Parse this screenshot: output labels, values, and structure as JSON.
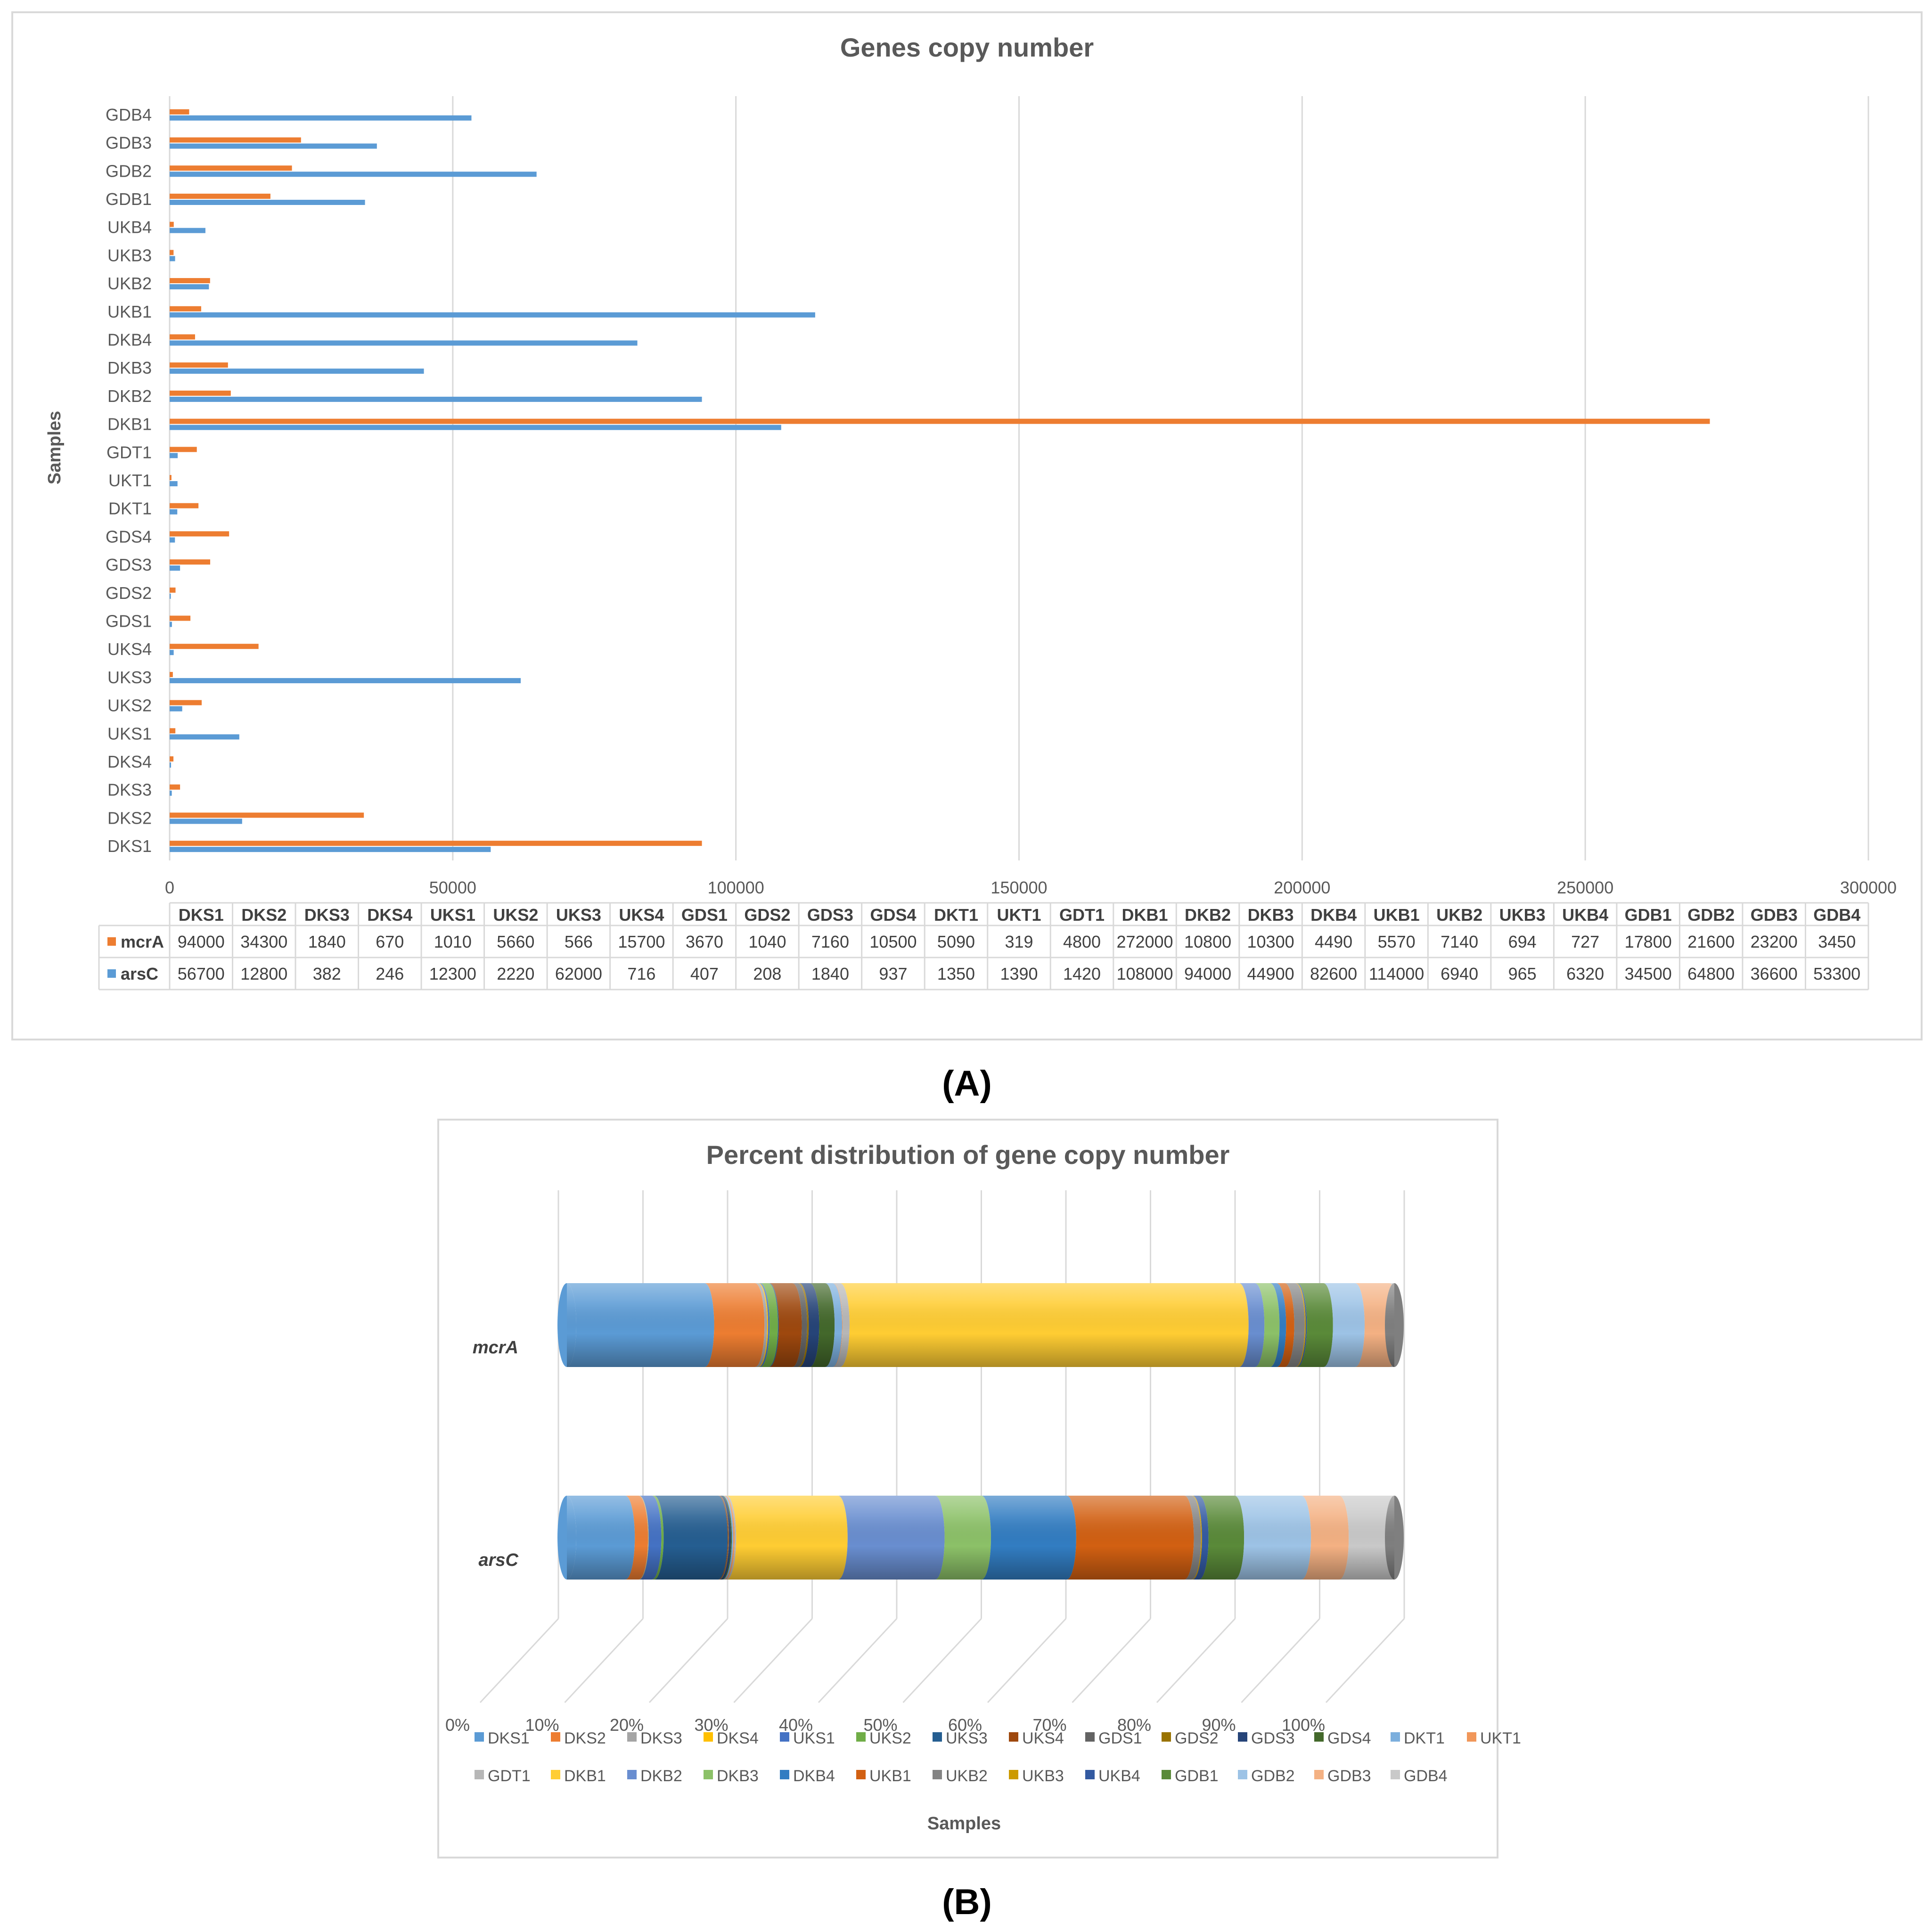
{
  "panels": {
    "a_label": "A",
    "b_label": "B"
  },
  "chart_data": [
    {
      "type": "bar",
      "orientation": "horizontal",
      "title": "Genes copy number",
      "xlabel": "",
      "ylabel": "Samples",
      "xlim": [
        0,
        300000
      ],
      "x_ticks": [
        0,
        50000,
        100000,
        150000,
        200000,
        250000,
        300000
      ],
      "grid": true,
      "legend": "data-table",
      "categories": [
        "DKS1",
        "DKS2",
        "DKS3",
        "DKS4",
        "UKS1",
        "UKS2",
        "UKS3",
        "UKS4",
        "GDS1",
        "GDS2",
        "GDS3",
        "GDS4",
        "DKT1",
        "UKT1",
        "GDT1",
        "DKB1",
        "DKB2",
        "DKB3",
        "DKB4",
        "UKB1",
        "UKB2",
        "UKB3",
        "UKB4",
        "GDB1",
        "GDB2",
        "GDB3",
        "GDB4"
      ],
      "series": [
        {
          "name": "mcrA",
          "color": "#ED7D31",
          "values": [
            94000,
            34300,
            1840,
            670,
            1010,
            5660,
            566,
            15700,
            3670,
            1040,
            7160,
            10500,
            5090,
            319,
            4800,
            272000,
            10800,
            10300,
            4490,
            5570,
            7140,
            694,
            727,
            17800,
            21600,
            23200,
            3450
          ]
        },
        {
          "name": "arsC",
          "color": "#5B9BD5",
          "values": [
            56700,
            12800,
            382,
            246,
            12300,
            2220,
            62000,
            716,
            407,
            208,
            1840,
            937,
            1350,
            1390,
            1420,
            108000,
            94000,
            44900,
            82600,
            114000,
            6940,
            965,
            6320,
            34500,
            64800,
            36600,
            53300
          ]
        }
      ]
    },
    {
      "type": "bar",
      "orientation": "horizontal",
      "stacked": "percent",
      "title": "Percent distribution of gene copy number",
      "xlabel": "Samples",
      "ylabel": "",
      "x_ticks": [
        "0%",
        "10%",
        "20%",
        "30%",
        "40%",
        "50%",
        "60%",
        "70%",
        "80%",
        "90%",
        "100%"
      ],
      "rows": [
        "mcrA",
        "arsC"
      ],
      "legend": "bottom",
      "series_names": [
        "DKS1",
        "DKS2",
        "DKS3",
        "DKS4",
        "UKS1",
        "UKS2",
        "UKS3",
        "UKS4",
        "GDS1",
        "GDS2",
        "GDS3",
        "GDS4",
        "DKT1",
        "UKT1",
        "GDT1",
        "DKB1",
        "DKB2",
        "DKB3",
        "DKB4",
        "UKB1",
        "UKB2",
        "UKB3",
        "UKB4",
        "GDB1",
        "GDB2",
        "GDB3",
        "GDB4"
      ],
      "series_colors": [
        "#5B9BD5",
        "#ED7D31",
        "#A5A5A5",
        "#FFC000",
        "#4472C4",
        "#70AD47",
        "#255E91",
        "#9E480E",
        "#636363",
        "#997300",
        "#264478",
        "#43682B",
        "#7CAFDD",
        "#F1975A",
        "#B7B7B7",
        "#FFCD33",
        "#698ED0",
        "#8CC168",
        "#327DC2",
        "#D26012",
        "#848484",
        "#CC9A00",
        "#335AA1",
        "#5A8A39",
        "#9DC3E6",
        "#F4B183",
        "#C9C9C9"
      ]
    }
  ]
}
